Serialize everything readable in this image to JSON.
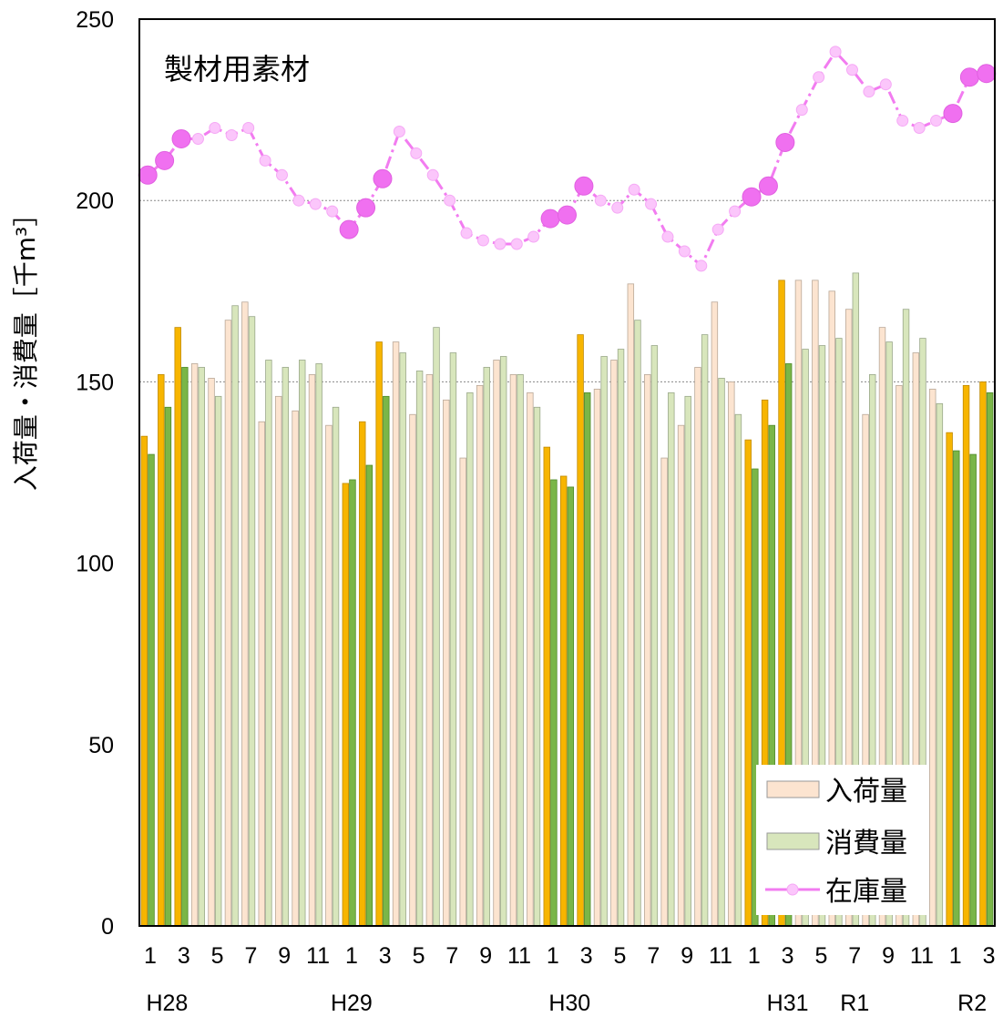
{
  "chart_data": {
    "type": "bar",
    "title": "製材用素材",
    "ylabel": "入荷量・消費量［千m³］",
    "xlabel": "",
    "ylim": [
      0,
      250
    ],
    "yticks": [
      "0",
      "50",
      "100",
      "150",
      "200",
      "250"
    ],
    "ytick_values": [
      0,
      50,
      100,
      150,
      200,
      250
    ],
    "grid": "horizontal dotted at 150 and 200",
    "legend_position": "bottom-right",
    "x_month_labels": [
      "1",
      "3",
      "5",
      "7",
      "9",
      "11",
      "1",
      "3",
      "5",
      "7",
      "9",
      "11",
      "1",
      "3",
      "5",
      "7",
      "9",
      "11",
      "1",
      "3",
      "5",
      "7",
      "9",
      "11",
      "1",
      "3"
    ],
    "x_year_labels": [
      "H28",
      "H29",
      "H30",
      "H31",
      "R1",
      "R2"
    ],
    "x_year_label_months": [
      2,
      13,
      26,
      39,
      43,
      50
    ],
    "highlighted_months": [
      1,
      2,
      3,
      13,
      14,
      15,
      25,
      26,
      27,
      37,
      38,
      39,
      49,
      50,
      51
    ],
    "months": [
      1,
      2,
      3,
      4,
      5,
      6,
      7,
      8,
      9,
      10,
      11,
      12,
      13,
      14,
      15,
      16,
      17,
      18,
      19,
      20,
      21,
      22,
      23,
      24,
      25,
      26,
      27,
      28,
      29,
      30,
      31,
      32,
      33,
      34,
      35,
      36,
      37,
      38,
      39,
      40,
      41,
      42,
      43,
      44,
      45,
      46,
      47,
      48,
      49,
      50,
      51
    ],
    "series": [
      {
        "name": "入荷量",
        "kind": "bar",
        "color": "#fce4d0",
        "highlight_color": "#f7b500",
        "values": [
          135,
          152,
          165,
          155,
          151,
          167,
          172,
          139,
          146,
          142,
          152,
          138,
          122,
          139,
          161,
          161,
          141,
          152,
          145,
          129,
          149,
          156,
          152,
          147,
          132,
          124,
          163,
          148,
          156,
          177,
          152,
          129,
          138,
          154,
          172,
          150,
          134,
          145,
          178,
          178,
          178,
          175,
          170,
          141,
          165,
          149,
          158,
          148,
          136,
          149,
          150
        ]
      },
      {
        "name": "消費量",
        "kind": "bar",
        "color": "#d8e6bc",
        "highlight_color": "#7ab648",
        "values": [
          130,
          143,
          154,
          154,
          146,
          171,
          168,
          156,
          154,
          156,
          155,
          143,
          123,
          127,
          146,
          158,
          153,
          165,
          158,
          147,
          154,
          157,
          152,
          143,
          123,
          121,
          147,
          157,
          159,
          167,
          160,
          147,
          146,
          163,
          151,
          141,
          126,
          138,
          155,
          159,
          160,
          162,
          180,
          152,
          161,
          170,
          162,
          144,
          131,
          130,
          147
        ]
      },
      {
        "name": "在庫量",
        "kind": "line",
        "color": "#f27cf0",
        "values": [
          207,
          211,
          217,
          217,
          220,
          218,
          220,
          211,
          207,
          200,
          199,
          197,
          192,
          198,
          206,
          219,
          213,
          207,
          200,
          191,
          189,
          188,
          188,
          190,
          195,
          196,
          204,
          200,
          198,
          203,
          199,
          190,
          186,
          182,
          192,
          197,
          201,
          204,
          216,
          225,
          234,
          241,
          236,
          230,
          232,
          222,
          220,
          222,
          224,
          234,
          235
        ]
      }
    ]
  }
}
